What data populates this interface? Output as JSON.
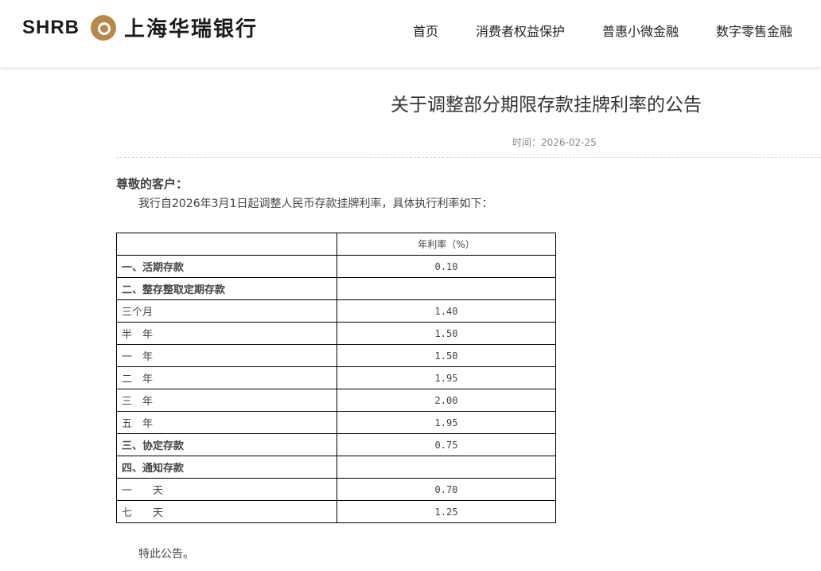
{
  "header": {
    "logo_en": "SHRB",
    "logo_cn": "上海华瑞银行",
    "brand_color": "#b8884a",
    "nav": [
      "首页",
      "消费者权益保护",
      "普惠小微金融",
      "数字零售金融"
    ]
  },
  "article": {
    "title": "关于调整部分期限存款挂牌利率的公告",
    "time": "时间：2026-02-25",
    "greeting": "尊敬的客户：",
    "intro": "我行自2026年3月1日起调整人民币存款挂牌利率，具体执行利率如下：",
    "table": {
      "header": [
        "",
        "年利率（%）"
      ],
      "rows": [
        {
          "label": "一、活期存款",
          "rate": "0.10",
          "bold": true
        },
        {
          "label": "二、整存整取定期存款",
          "rate": "",
          "bold": true
        },
        {
          "label": "三个月",
          "rate": "1.40",
          "bold": false
        },
        {
          "label": "半　年",
          "rate": "1.50",
          "bold": false
        },
        {
          "label": "一　年",
          "rate": "1.50",
          "bold": false
        },
        {
          "label": "二　年",
          "rate": "1.95",
          "bold": false
        },
        {
          "label": "三　年",
          "rate": "2.00",
          "bold": false
        },
        {
          "label": "五　年",
          "rate": "1.95",
          "bold": false
        },
        {
          "label": "三、协定存款",
          "rate": "0.75",
          "bold": true
        },
        {
          "label": "四、通知存款",
          "rate": "",
          "bold": true
        },
        {
          "label": "一　　天",
          "rate": "0.70",
          "bold": false
        },
        {
          "label": "七　　天",
          "rate": "1.25",
          "bold": false
        }
      ]
    },
    "closing": "特此公告。"
  }
}
